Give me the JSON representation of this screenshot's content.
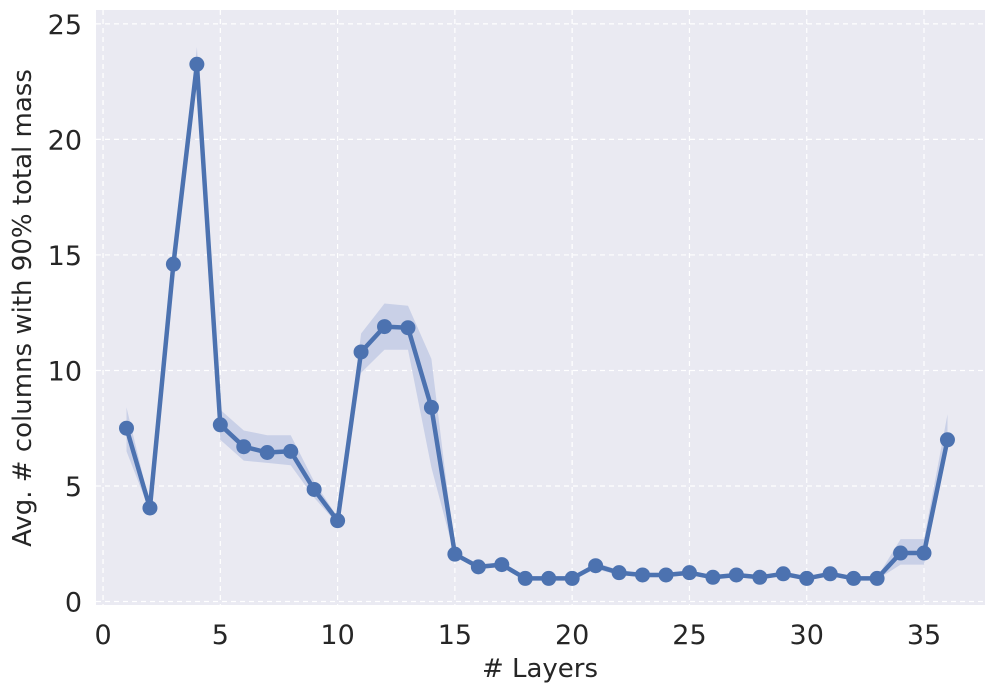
{
  "chart_data": {
    "type": "line",
    "title": "",
    "xlabel": "# Layers",
    "ylabel": "Avg. # columns with 90% total mass",
    "xlim": [
      -0.3,
      37.6
    ],
    "ylim": [
      -0.15,
      25.6
    ],
    "xticks": [
      0,
      5,
      10,
      15,
      20,
      25,
      30,
      35
    ],
    "yticks": [
      0,
      5,
      10,
      15,
      20,
      25
    ],
    "grid": true,
    "background": "#eaeaf2",
    "line_color": "#4c72b0",
    "band_color": "#c5cde6",
    "series": [
      {
        "x": [
          1,
          2,
          3,
          4,
          5,
          6,
          7,
          8,
          9,
          10,
          11,
          12,
          13,
          14,
          15,
          16,
          17,
          18,
          19,
          20,
          21,
          22,
          23,
          24,
          25,
          26,
          27,
          28,
          29,
          30,
          31,
          32,
          33,
          34,
          35,
          36
        ],
        "values": [
          7.5,
          4.05,
          14.6,
          23.25,
          7.65,
          6.7,
          6.45,
          6.5,
          4.85,
          3.5,
          10.8,
          11.9,
          11.85,
          8.4,
          2.05,
          1.5,
          1.6,
          1.0,
          1.0,
          1.0,
          1.55,
          1.25,
          1.15,
          1.15,
          1.25,
          1.05,
          1.15,
          1.05,
          1.2,
          1.0,
          1.2,
          1.0,
          1.0,
          2.1,
          2.1,
          7.0
        ],
        "lower": [
          6.5,
          3.9,
          14.3,
          22.5,
          7.0,
          6.1,
          6.0,
          5.9,
          4.5,
          3.35,
          9.9,
          10.9,
          10.9,
          5.8,
          1.95,
          1.4,
          1.5,
          0.95,
          0.95,
          0.95,
          1.4,
          1.15,
          1.05,
          1.05,
          1.15,
          0.98,
          1.05,
          0.98,
          1.1,
          0.95,
          1.1,
          0.95,
          0.95,
          1.6,
          1.6,
          6.6
        ],
        "upper": [
          8.4,
          4.2,
          14.9,
          24.0,
          8.3,
          7.4,
          7.2,
          7.2,
          5.2,
          3.65,
          11.6,
          12.9,
          12.8,
          10.5,
          2.15,
          1.6,
          1.7,
          1.05,
          1.05,
          1.05,
          1.7,
          1.35,
          1.25,
          1.25,
          1.35,
          1.12,
          1.25,
          1.12,
          1.3,
          1.05,
          1.3,
          1.05,
          1.05,
          2.7,
          2.7,
          8.1
        ]
      }
    ]
  }
}
